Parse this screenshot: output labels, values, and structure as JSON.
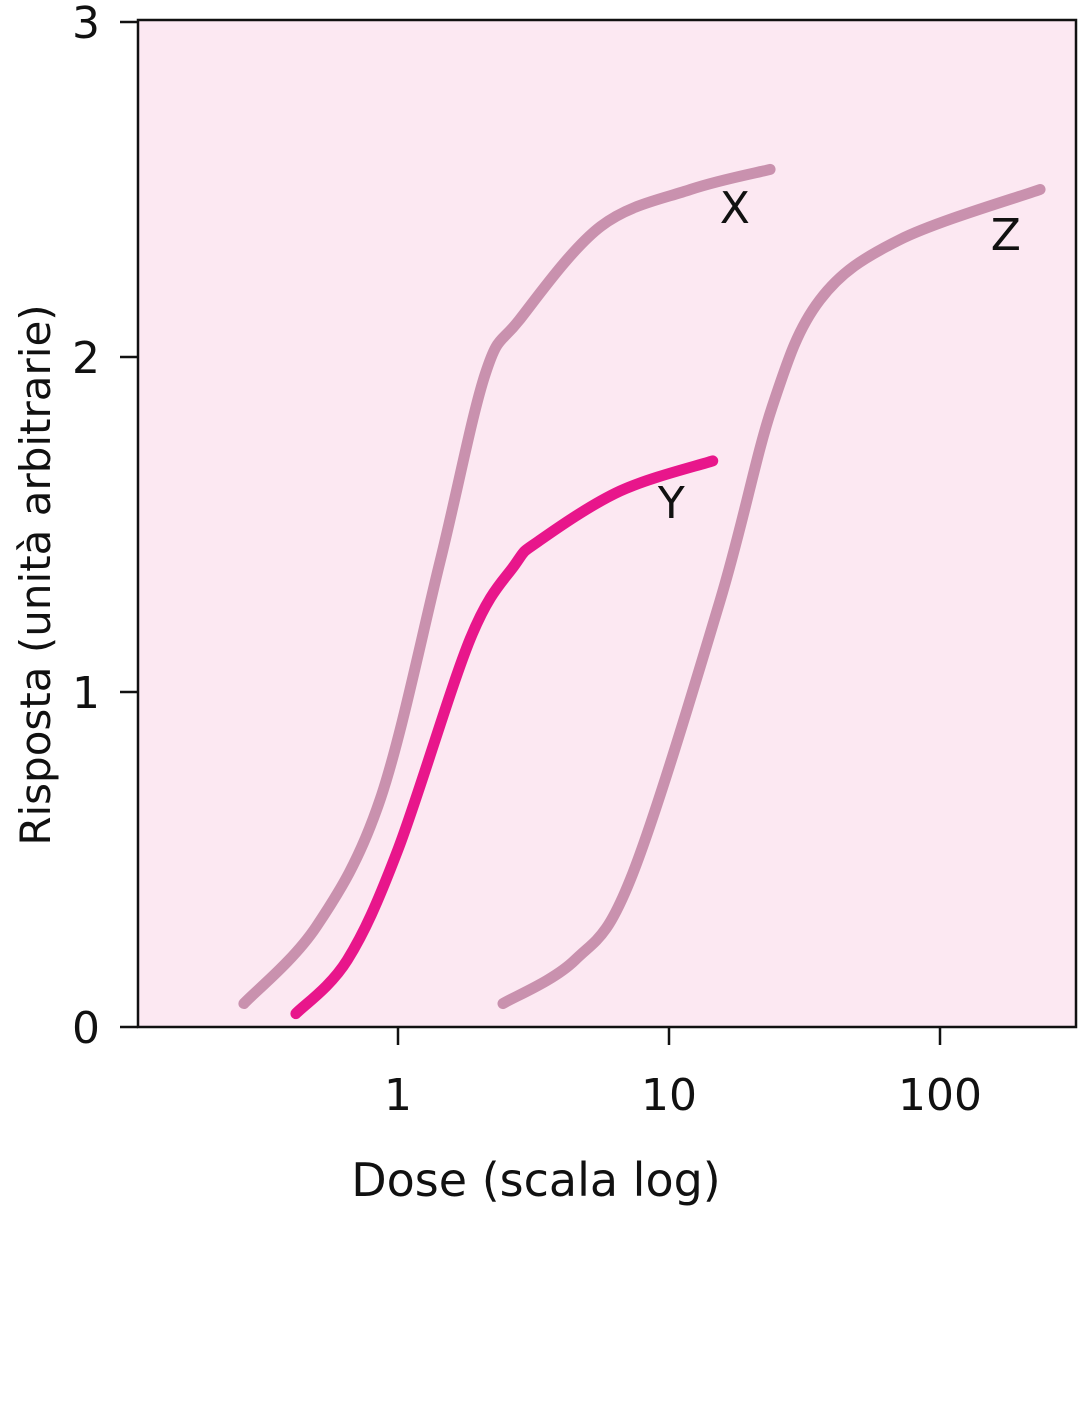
{
  "chart_data": {
    "type": "line",
    "title": "",
    "xlabel": "Dose (scala log)",
    "ylabel": "Risposta  (unità  arbitrarie)",
    "xscale": "log",
    "xlim": [
      0.11,
      350
    ],
    "ylim": [
      0,
      3
    ],
    "xticks": [
      {
        "value": 1,
        "label": "1"
      },
      {
        "value": 10,
        "label": "10"
      },
      {
        "value": 100,
        "label": "100"
      }
    ],
    "yticks": [
      {
        "value": 0,
        "label": "0"
      },
      {
        "value": 1,
        "label": "1"
      },
      {
        "value": 2,
        "label": "2"
      },
      {
        "value": 3,
        "label": "3"
      }
    ],
    "grid": false,
    "background": "#fce8f2",
    "series": [
      {
        "name": "X",
        "color": "#c991ae",
        "points": [
          [
            0.27,
            0.07
          ],
          [
            0.5,
            0.3
          ],
          [
            0.86,
            0.68
          ],
          [
            1.43,
            1.39
          ],
          [
            2.1,
            1.95
          ],
          [
            2.8,
            2.11
          ],
          [
            5.6,
            2.39
          ],
          [
            12,
            2.5
          ],
          [
            23.6,
            2.56
          ]
        ],
        "label_at": [
          17.5,
          2.4
        ]
      },
      {
        "name": "Y",
        "color": "#e8168b",
        "points": [
          [
            0.42,
            0.04
          ],
          [
            0.65,
            0.2
          ],
          [
            1.0,
            0.53
          ],
          [
            1.85,
            1.16
          ],
          [
            2.7,
            1.38
          ],
          [
            3.3,
            1.45
          ],
          [
            6.6,
            1.6
          ],
          [
            14.5,
            1.69
          ]
        ],
        "label_at": [
          10.2,
          1.52
        ]
      },
      {
        "name": "Z",
        "color": "#c991ae",
        "points": [
          [
            2.44,
            0.07
          ],
          [
            4.5,
            0.2
          ],
          [
            7.2,
            0.44
          ],
          [
            15.4,
            1.27
          ],
          [
            24,
            1.85
          ],
          [
            36,
            2.17
          ],
          [
            71,
            2.35
          ],
          [
            234,
            2.5
          ]
        ],
        "label_at": [
          175,
          2.32
        ]
      }
    ]
  }
}
